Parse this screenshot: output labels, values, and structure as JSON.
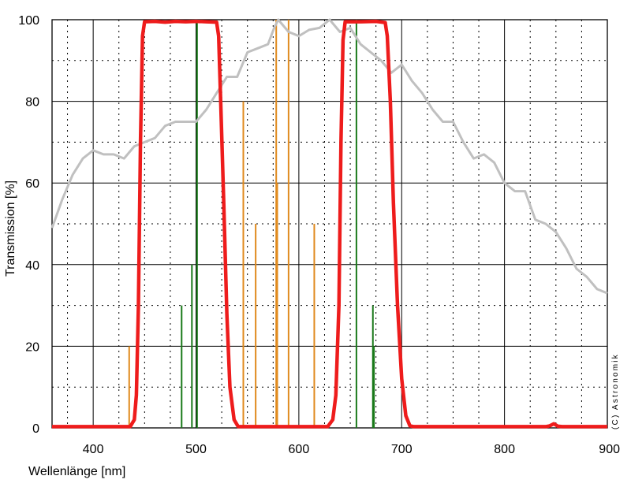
{
  "chart_data": {
    "type": "line",
    "title": "",
    "xlabel": "Wellenlänge [nm]",
    "ylabel": "Transmission [%]",
    "xlim": [
      360,
      900
    ],
    "ylim": [
      0,
      100
    ],
    "x_ticks": [
      400,
      500,
      600,
      700,
      800,
      900
    ],
    "y_ticks": [
      0,
      20,
      40,
      60,
      80,
      100
    ],
    "grid": {
      "major": true,
      "minor_dotted": true,
      "x_minor_step": 25,
      "y_minor_step": 10
    },
    "copyright": "(C) Astronomik",
    "colors": {
      "filter": "#ee1c1c",
      "sensor_qe": "#c0c0c0",
      "green_lines": "#1b7a1b",
      "orange_lines": "#e08a1e"
    },
    "series": [
      {
        "role": "filter",
        "points": [
          [
            360,
            0.3
          ],
          [
            436,
            0.3
          ],
          [
            440,
            2
          ],
          [
            442,
            8
          ],
          [
            444,
            30
          ],
          [
            446,
            70
          ],
          [
            448,
            96
          ],
          [
            450,
            99.5
          ],
          [
            460,
            99.6
          ],
          [
            470,
            99.4
          ],
          [
            480,
            99.6
          ],
          [
            490,
            99.5
          ],
          [
            500,
            99.6
          ],
          [
            510,
            99.5
          ],
          [
            520,
            99.4
          ],
          [
            522,
            96
          ],
          [
            524,
            80
          ],
          [
            527,
            55
          ],
          [
            530,
            28
          ],
          [
            533,
            10
          ],
          [
            537,
            2
          ],
          [
            541,
            0.3
          ],
          [
            628,
            0.3
          ],
          [
            633,
            2
          ],
          [
            636,
            8
          ],
          [
            639,
            30
          ],
          [
            641,
            70
          ],
          [
            643,
            95
          ],
          [
            645,
            99.5
          ],
          [
            660,
            99.5
          ],
          [
            675,
            99.6
          ],
          [
            684,
            99.3
          ],
          [
            686,
            96
          ],
          [
            689,
            80
          ],
          [
            692,
            55
          ],
          [
            696,
            30
          ],
          [
            700,
            12
          ],
          [
            704,
            3
          ],
          [
            708,
            0.5
          ],
          [
            712,
            0.3
          ],
          [
            840,
            0.3
          ],
          [
            844,
            0.5
          ],
          [
            848,
            1
          ],
          [
            852,
            0.4
          ],
          [
            856,
            0.3
          ],
          [
            900,
            0.3
          ]
        ]
      },
      {
        "role": "sensor_qe",
        "points": [
          [
            360,
            49
          ],
          [
            370,
            56
          ],
          [
            380,
            62
          ],
          [
            390,
            66
          ],
          [
            400,
            68
          ],
          [
            410,
            67
          ],
          [
            420,
            67
          ],
          [
            430,
            66
          ],
          [
            440,
            69
          ],
          [
            450,
            70
          ],
          [
            460,
            71
          ],
          [
            470,
            74
          ],
          [
            480,
            75
          ],
          [
            490,
            75
          ],
          [
            500,
            75
          ],
          [
            510,
            78
          ],
          [
            520,
            82
          ],
          [
            530,
            86
          ],
          [
            540,
            86
          ],
          [
            550,
            92
          ],
          [
            560,
            93
          ],
          [
            570,
            94
          ],
          [
            576,
            98
          ],
          [
            580,
            100
          ],
          [
            590,
            97
          ],
          [
            600,
            96
          ],
          [
            610,
            97.5
          ],
          [
            620,
            98
          ],
          [
            630,
            100
          ],
          [
            640,
            97
          ],
          [
            650,
            98
          ],
          [
            660,
            94
          ],
          [
            670,
            92
          ],
          [
            680,
            90
          ],
          [
            690,
            87
          ],
          [
            700,
            89
          ],
          [
            710,
            85
          ],
          [
            720,
            82
          ],
          [
            730,
            78
          ],
          [
            740,
            75
          ],
          [
            750,
            75
          ],
          [
            760,
            70
          ],
          [
            770,
            66
          ],
          [
            780,
            67
          ],
          [
            790,
            65
          ],
          [
            800,
            60
          ],
          [
            810,
            58
          ],
          [
            820,
            58
          ],
          [
            830,
            51
          ],
          [
            840,
            50
          ],
          [
            850,
            48
          ],
          [
            860,
            44
          ],
          [
            870,
            39
          ],
          [
            880,
            37
          ],
          [
            890,
            34
          ],
          [
            900,
            33
          ]
        ]
      }
    ],
    "emission_lines": {
      "green": [
        [
          486,
          30
        ],
        [
          496,
          40
        ],
        [
          501,
          100
        ],
        [
          656,
          100
        ],
        [
          672,
          30
        ],
        [
          673,
          20
        ]
      ],
      "orange": [
        [
          435,
          20
        ],
        [
          546,
          80
        ],
        [
          558,
          50
        ],
        [
          578,
          100
        ],
        [
          579,
          60
        ],
        [
          590,
          100
        ],
        [
          615,
          50
        ]
      ]
    }
  }
}
